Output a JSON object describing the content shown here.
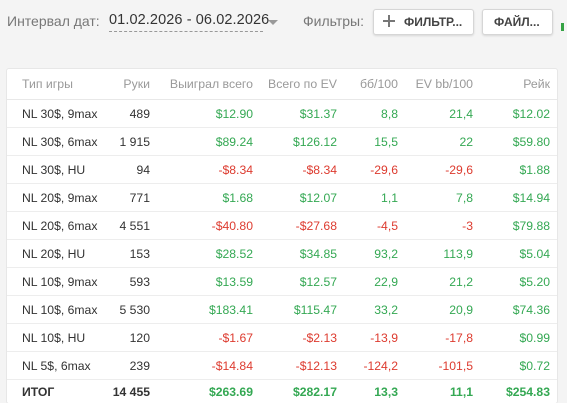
{
  "toolbar": {
    "date_label": "Интервал дат:",
    "date_range": "01.02.2026 - 06.02.2026",
    "filters_label": "Фильтры:",
    "filter_button_label": "ФИЛЬТР...",
    "file_button_label": "ФАЙЛ..."
  },
  "colors": {
    "positive": "#34a853",
    "negative": "#dd3b2f",
    "header_text": "#999999",
    "background": "#f4f4f4"
  },
  "table": {
    "headers": {
      "game": "Тип игры",
      "hands": "Руки",
      "won_total": "Выиграл всего",
      "ev_total": "Всего по EV",
      "bb100": "бб/100",
      "ev_bb100": "EV bb/100",
      "rake": "Рейк"
    },
    "rows": [
      {
        "game": "NL 30$, 9max",
        "hands": "489",
        "won_total": "$12.90",
        "ev_total": "$31.37",
        "bb100": "8,8",
        "ev_bb100": "21,4",
        "rake": "$12.02"
      },
      {
        "game": "NL 30$, 6max",
        "hands": "1 915",
        "won_total": "$89.24",
        "ev_total": "$126.12",
        "bb100": "15,5",
        "ev_bb100": "22",
        "rake": "$59.80"
      },
      {
        "game": "NL 30$, HU",
        "hands": "94",
        "won_total": "-$8.34",
        "ev_total": "-$8.34",
        "bb100": "-29,6",
        "ev_bb100": "-29,6",
        "rake": "$1.88"
      },
      {
        "game": "NL 20$, 9max",
        "hands": "771",
        "won_total": "$1.68",
        "ev_total": "$12.07",
        "bb100": "1,1",
        "ev_bb100": "7,8",
        "rake": "$14.94"
      },
      {
        "game": "NL 20$, 6max",
        "hands": "4 551",
        "won_total": "-$40.80",
        "ev_total": "-$27.68",
        "bb100": "-4,5",
        "ev_bb100": "-3",
        "rake": "$79.88"
      },
      {
        "game": "NL 20$, HU",
        "hands": "153",
        "won_total": "$28.52",
        "ev_total": "$34.85",
        "bb100": "93,2",
        "ev_bb100": "113,9",
        "rake": "$5.04"
      },
      {
        "game": "NL 10$, 9max",
        "hands": "593",
        "won_total": "$13.59",
        "ev_total": "$12.57",
        "bb100": "22,9",
        "ev_bb100": "21,2",
        "rake": "$5.20"
      },
      {
        "game": "NL 10$, 6max",
        "hands": "5 530",
        "won_total": "$183.41",
        "ev_total": "$115.47",
        "bb100": "33,2",
        "ev_bb100": "20,9",
        "rake": "$74.36"
      },
      {
        "game": "NL 10$, HU",
        "hands": "120",
        "won_total": "-$1.67",
        "ev_total": "-$2.13",
        "bb100": "-13,9",
        "ev_bb100": "-17,8",
        "rake": "$0.99"
      },
      {
        "game": "NL 5$, 6max",
        "hands": "239",
        "won_total": "-$14.84",
        "ev_total": "-$12.13",
        "bb100": "-124,2",
        "ev_bb100": "-101,5",
        "rake": "$0.72"
      }
    ],
    "total": {
      "game": "ИТОГ",
      "hands": "14 455",
      "won_total": "$263.69",
      "ev_total": "$282.17",
      "bb100": "13,3",
      "ev_bb100": "11,1",
      "rake": "$254.83"
    }
  }
}
